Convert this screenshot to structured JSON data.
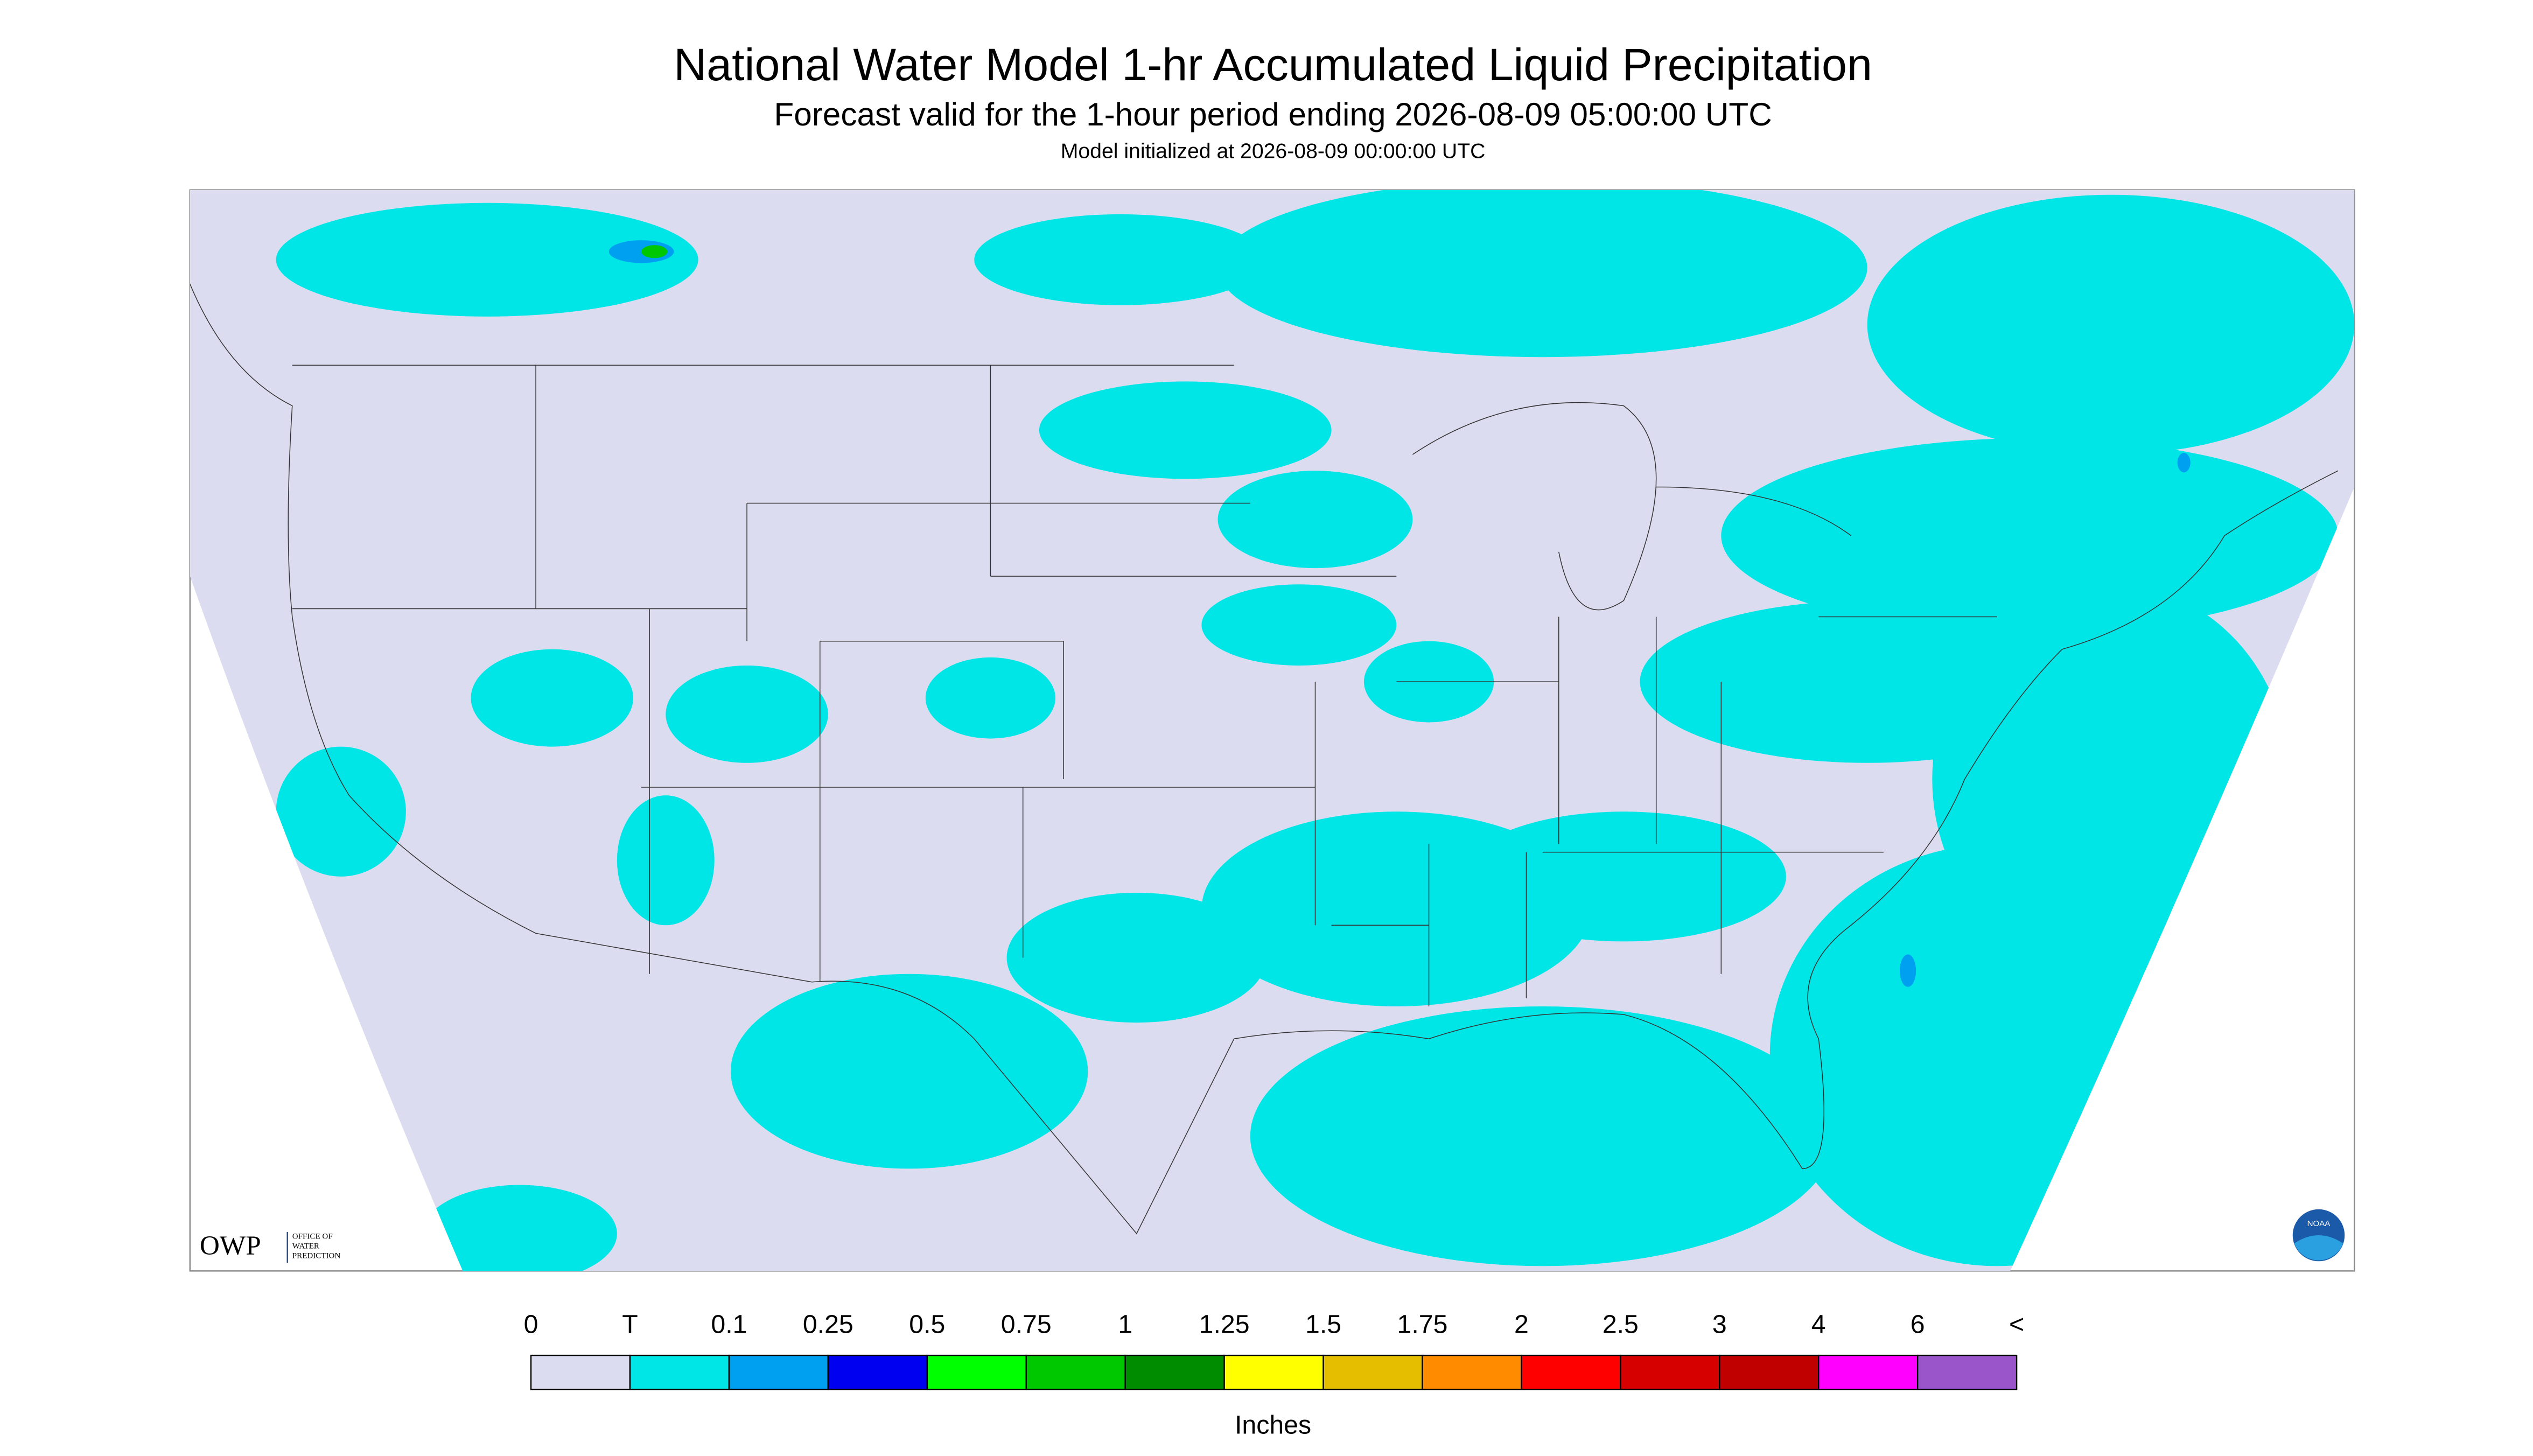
{
  "header": {
    "title": "National Water Model 1-hr Accumulated Liquid Precipitation",
    "subtitle": "Forecast valid for the 1-hour period ending 2026-08-09 05:00:00 UTC",
    "initialized": "Model initialized at 2026-08-09 00:00:00 UTC"
  },
  "legend": {
    "labels": [
      "0",
      "T",
      "0.1",
      "0.25",
      "0.5",
      "0.75",
      "1",
      "1.25",
      "1.5",
      "1.75",
      "2",
      "2.5",
      "3",
      "4",
      "6",
      "<"
    ],
    "colors": [
      "#dcdcf0",
      "#00e6e6",
      "#00a0f0",
      "#0000f0",
      "#00ff00",
      "#00c800",
      "#008c00",
      "#ffff00",
      "#e6be00",
      "#ff8c00",
      "#ff0000",
      "#d70000",
      "#c00000",
      "#ff00ff",
      "#9955c9"
    ],
    "unit": "Inches"
  },
  "logos": {
    "owp": "OWP",
    "owp_lines": [
      "OFFICE OF",
      "WATER",
      "PREDICTION"
    ],
    "noaa": "NOAA"
  }
}
